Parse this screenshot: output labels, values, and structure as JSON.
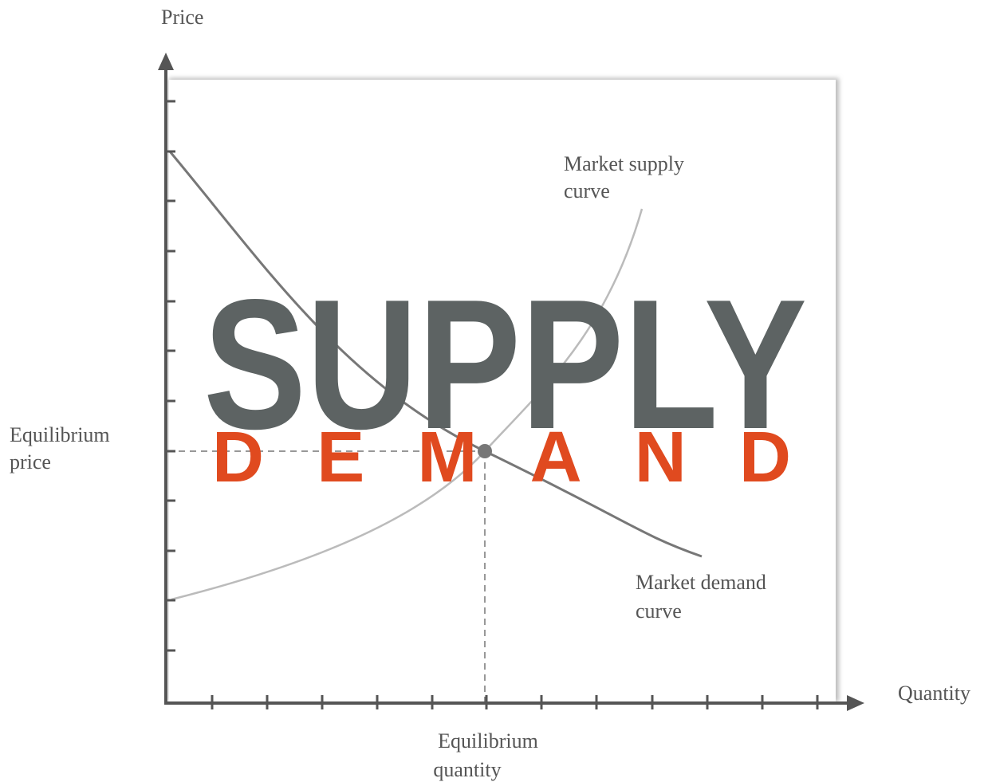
{
  "axes": {
    "y_label": "Price",
    "x_label": "Quantity"
  },
  "labels": {
    "supply_curve": [
      "Market supply",
      "curve"
    ],
    "demand_curve": [
      "Market demand",
      "curve"
    ],
    "equilibrium_price": [
      "Equilibrium",
      "price"
    ],
    "equilibrium_quantity": [
      "Equilibrium",
      "quantity"
    ]
  },
  "overlay": {
    "title": "SUPPLY",
    "subtitle": "DEMAND"
  }
}
